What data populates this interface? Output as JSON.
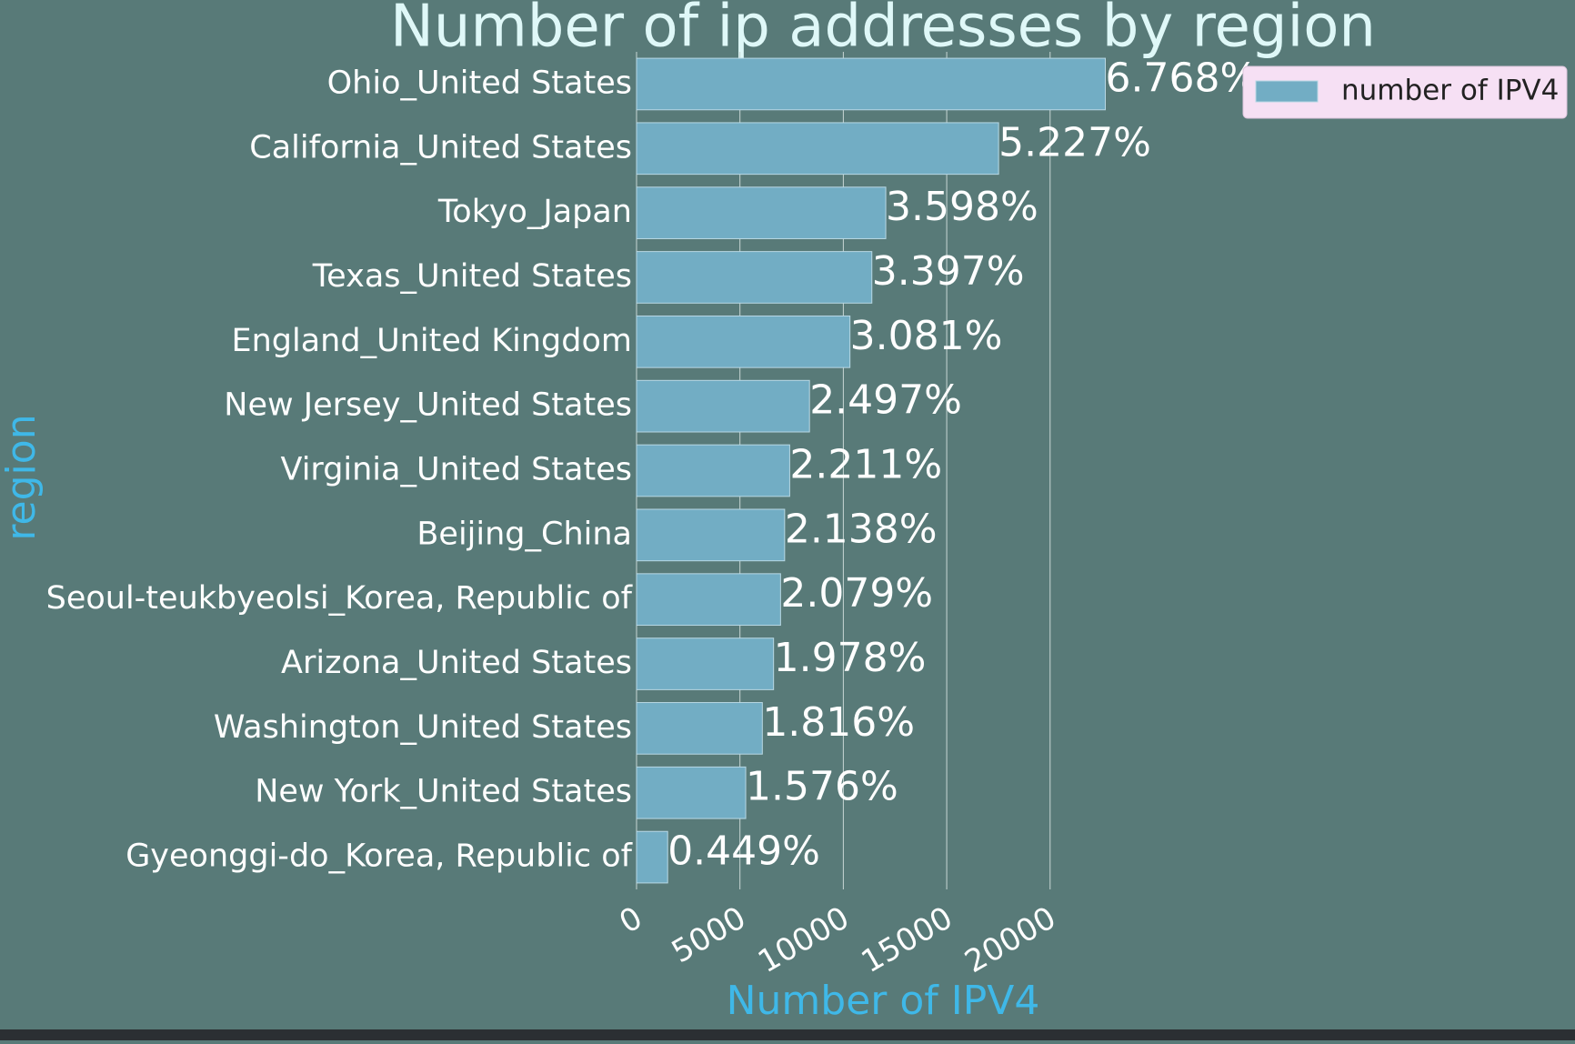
{
  "chart_data": {
    "type": "bar",
    "orientation": "horizontal",
    "title": "Number of ip addresses by region",
    "x_label": "Number of IPV4",
    "y_label": "region",
    "categories": [
      "Ohio_United States",
      "California_United States",
      "Tokyo_Japan",
      "Texas_United States",
      "England_United Kingdom",
      "New Jersey_United States",
      "Virginia_United States",
      "Beijing_China",
      "Seoul-teukbyeolsi_Korea, Republic of",
      "Arizona_United States",
      "Washington_United States",
      "New York_United States",
      "Gyeonggi-do_Korea, Republic of"
    ],
    "series": [
      {
        "name": "number of IPV4",
        "color": "#72adc4",
        "values": [
          22670,
          17508,
          12052,
          11379,
          10320,
          8364,
          7406,
          7161,
          6964,
          6626,
          6083,
          5279,
          1504
        ],
        "value_labels": [
          "6.768%",
          "5.227%",
          "3.598%",
          "3.397%",
          "3.081%",
          "2.497%",
          "2.211%",
          "2.138%",
          "2.079%",
          "1.978%",
          "1.816%",
          "1.576%",
          "0.449%"
        ]
      }
    ],
    "xlim": [
      0,
      23000
    ],
    "xticks": [
      0,
      5000,
      10000,
      15000,
      20000
    ],
    "grid": true,
    "legend": "upper right"
  }
}
